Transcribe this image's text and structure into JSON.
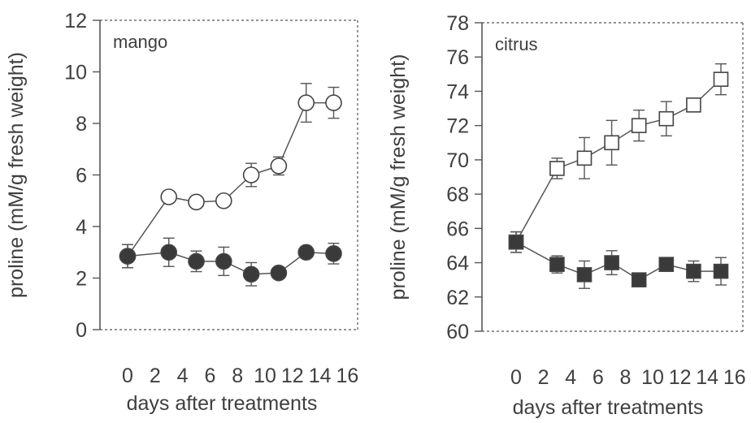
{
  "chart_data": [
    {
      "type": "line",
      "panel_label": "mango",
      "ylabel": "proline (mM/g fresh weight)",
      "xlabel": "days after treatments",
      "xlim": [
        0,
        16
      ],
      "ylim": [
        0,
        12
      ],
      "x_ticks": [
        0,
        2,
        4,
        6,
        8,
        10,
        12,
        14,
        16
      ],
      "y_ticks": [
        0,
        2,
        4,
        6,
        8,
        10,
        12
      ],
      "marker": "circle",
      "series": [
        {
          "style": "open",
          "x": [
            0,
            3,
            5,
            7,
            9,
            11,
            13,
            15
          ],
          "values": [
            2.85,
            5.15,
            4.95,
            5.0,
            6.0,
            6.35,
            8.8,
            8.8
          ],
          "err": [
            0.45,
            0.2,
            0.2,
            0.2,
            0.45,
            0.35,
            0.75,
            0.6
          ]
        },
        {
          "style": "filled",
          "x": [
            0,
            3,
            5,
            7,
            9,
            11,
            13,
            15
          ],
          "values": [
            2.85,
            3.0,
            2.65,
            2.65,
            2.15,
            2.2,
            3.0,
            2.95
          ],
          "err": [
            0.45,
            0.55,
            0.4,
            0.55,
            0.45,
            0.2,
            0.2,
            0.4
          ]
        }
      ]
    },
    {
      "type": "line",
      "panel_label": "citrus",
      "ylabel": "proline (mM/g fresh weight)",
      "xlabel": "days after treatments",
      "xlim": [
        0,
        16
      ],
      "ylim": [
        60,
        78
      ],
      "x_ticks": [
        0,
        2,
        4,
        6,
        8,
        10,
        12,
        14,
        16
      ],
      "y_ticks": [
        60,
        62,
        64,
        66,
        68,
        70,
        72,
        74,
        76,
        78
      ],
      "marker": "square",
      "series": [
        {
          "style": "open",
          "x": [
            0,
            3,
            5,
            7,
            9,
            11,
            13,
            15
          ],
          "values": [
            65.2,
            69.5,
            70.1,
            71.0,
            72.0,
            72.4,
            73.2,
            74.7
          ],
          "err": [
            0.6,
            0.6,
            1.2,
            1.3,
            0.9,
            1.0,
            0.3,
            0.9
          ]
        },
        {
          "style": "filled",
          "x": [
            0,
            3,
            5,
            7,
            9,
            11,
            13,
            15
          ],
          "values": [
            65.2,
            63.9,
            63.3,
            64.0,
            63.0,
            63.9,
            63.5,
            63.5
          ],
          "err": [
            0.6,
            0.5,
            0.8,
            0.7,
            0.3,
            0.3,
            0.6,
            0.8
          ]
        }
      ]
    }
  ],
  "colors": {
    "axis": "#555555",
    "text": "#3f3f3f",
    "marker_fill": "#3a3a3a",
    "open_fill": "#ffffff"
  }
}
